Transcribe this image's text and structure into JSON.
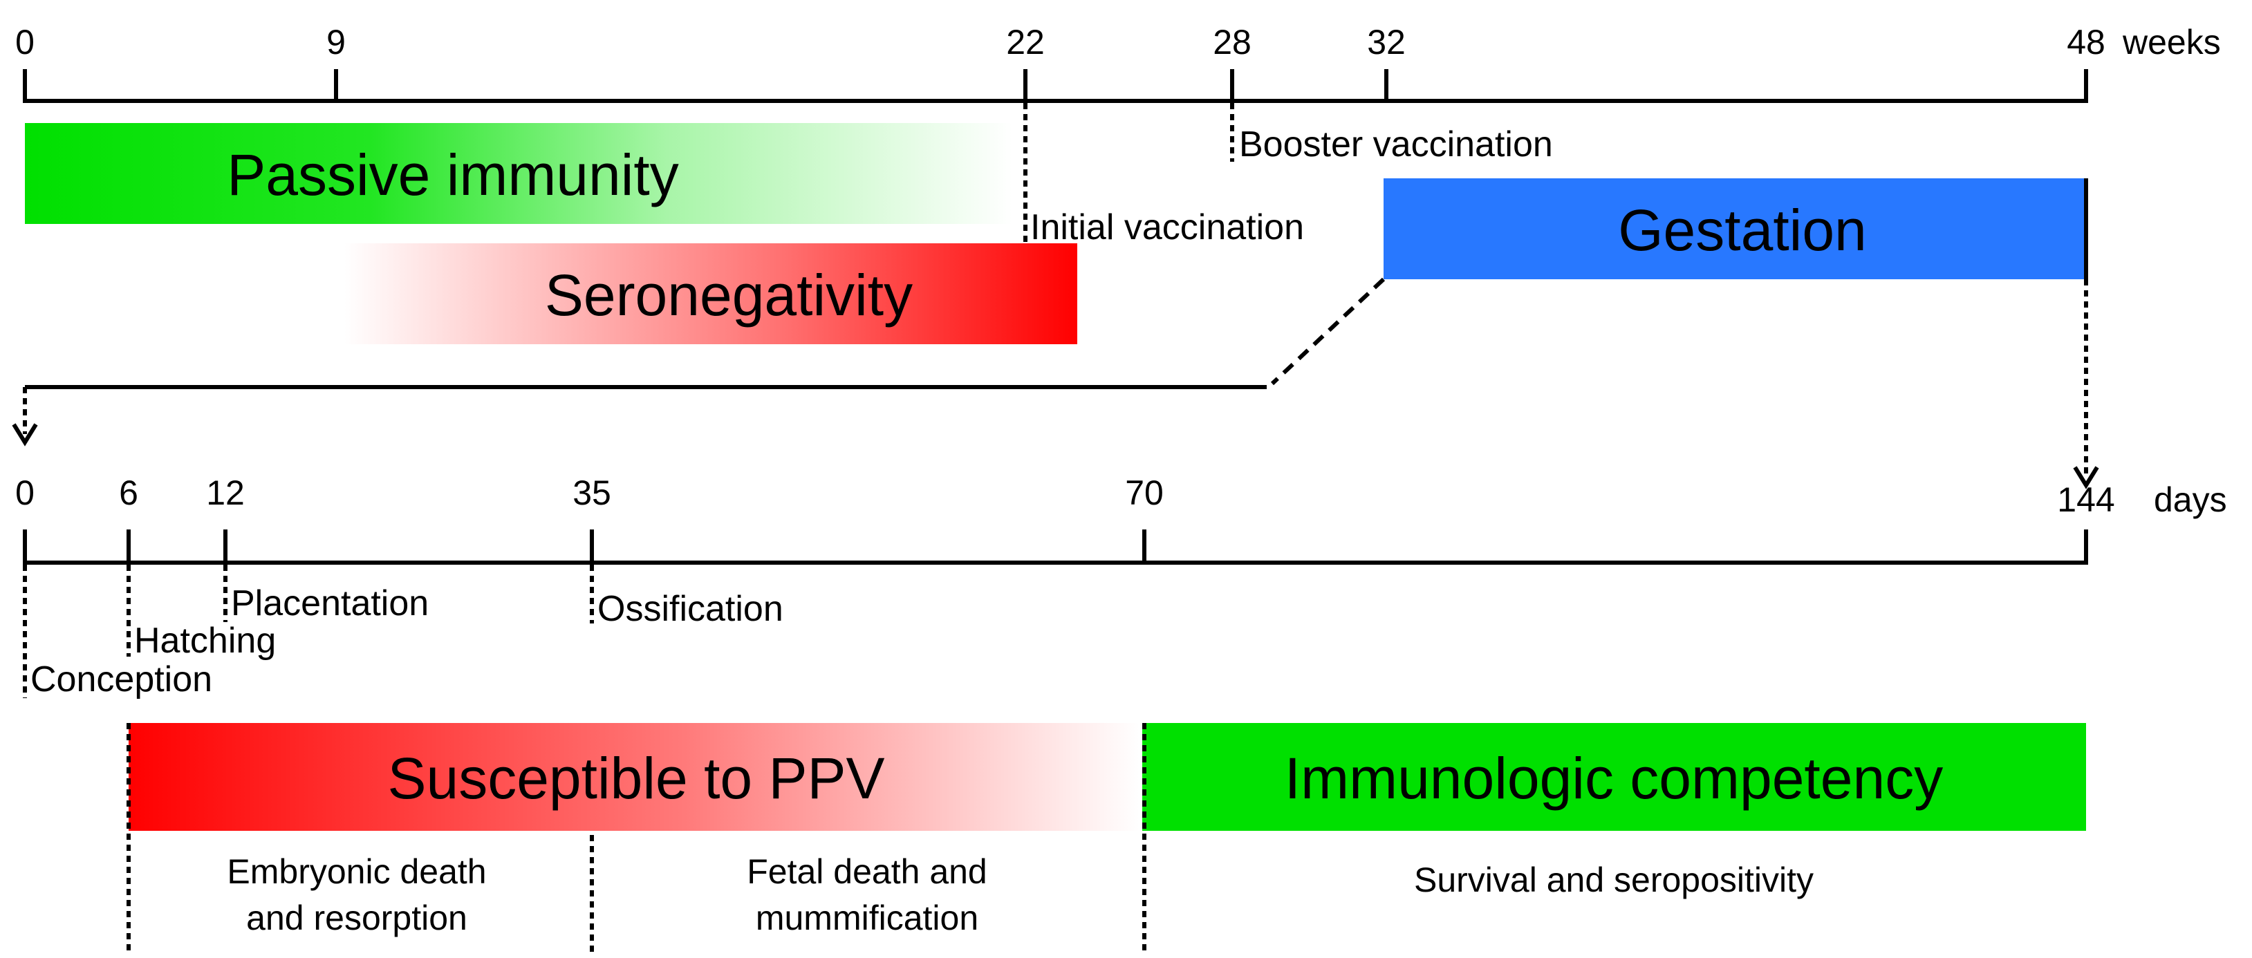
{
  "weeks_timeline": {
    "ticks": [
      "0",
      "9",
      "22",
      "28",
      "32",
      "48"
    ],
    "unit": "weeks",
    "events": {
      "initial_vaccination": "Initial vaccination",
      "booster_vaccination": "Booster vaccination"
    },
    "bars": {
      "passive_immunity": "Passive immunity",
      "seronegativity": "Seronegativity",
      "gestation": "Gestation"
    }
  },
  "days_timeline": {
    "ticks": [
      "0",
      "6",
      "12",
      "35",
      "70",
      "144"
    ],
    "unit": "days",
    "events": {
      "conception": "Conception",
      "hatching": "Hatching",
      "placentation": "Placentation",
      "ossification": "Ossification"
    },
    "bars": {
      "susceptible": "Susceptible to PPV",
      "immunologic": "Immunologic competency"
    },
    "outcomes": {
      "embryonic_1": "Embryonic death",
      "embryonic_2": "and resorption",
      "fetal_1": "Fetal death and",
      "fetal_2": "mummification",
      "survival": "Survival and seropositivity"
    }
  },
  "colors": {
    "green": "#00e000",
    "red": "#ff0000",
    "blue": "#2878ff"
  }
}
